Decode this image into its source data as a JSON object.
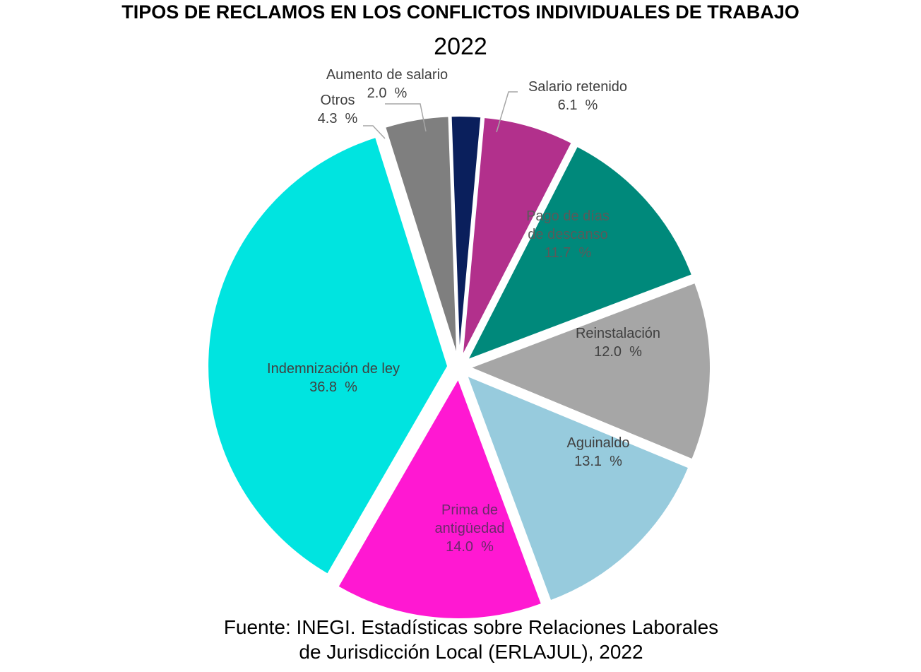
{
  "header": {
    "title": "TIPOS DE RECLAMOS EN LOS CONFLICTOS INDIVIDUALES DE TRABAJO",
    "subtitle": "2022"
  },
  "source": {
    "line1": "Fuente: INEGI. Estadísticas sobre Relaciones Laborales",
    "line2": "de Jurisdicción Local (ERLAJUL), 2022"
  },
  "chart_data": {
    "type": "pie",
    "title": "TIPOS DE RECLAMOS EN LOS CONFLICTOS INDIVIDUALES DE TRABAJO",
    "subtitle": "2022",
    "exploded": true,
    "slices": [
      {
        "key": "aumento-de-salario",
        "label": "Aumento de salario",
        "value": 2.0,
        "value_text": "2.0  %",
        "color": "#0a1f5c"
      },
      {
        "key": "salario-retenido",
        "label": "Salario retenido",
        "value": 6.1,
        "value_text": "6.1  %",
        "color": "#b2308c"
      },
      {
        "key": "pago-de-dias-de-descanso",
        "label": "Pago de días de descanso",
        "label_lines": [
          "Pago de días",
          "de descanso"
        ],
        "value": 11.7,
        "value_text": "11.7  %",
        "color": "#00897b"
      },
      {
        "key": "reinstalacion",
        "label": "Reinstalación",
        "value": 12.0,
        "value_text": "12.0  %",
        "color": "#a6a6a6"
      },
      {
        "key": "aguinaldo",
        "label": "Aguinaldo",
        "value": 13.1,
        "value_text": "13.1  %",
        "color": "#97cbdd"
      },
      {
        "key": "prima-de-antiguedad",
        "label": "Prima de antigüedad",
        "label_lines": [
          "Prima de",
          "antigüedad"
        ],
        "value": 14.0,
        "value_text": "14.0  %",
        "color": "#ff18d2"
      },
      {
        "key": "indemnizacion-de-ley",
        "label": "Indemnización de ley",
        "value": 36.8,
        "value_text": "36.8  %",
        "color": "#00e4e0"
      },
      {
        "key": "otros",
        "label": "Otros",
        "value": 4.3,
        "value_text": "4.3  %",
        "color": "#7f7f7f"
      }
    ],
    "label_text_colors": {
      "outside": "#404040",
      "pago-de-dias-de-descanso": "#5a5a5a",
      "prima-de-antiguedad": "#6a2a6a",
      "inside_default": "#404040"
    }
  }
}
